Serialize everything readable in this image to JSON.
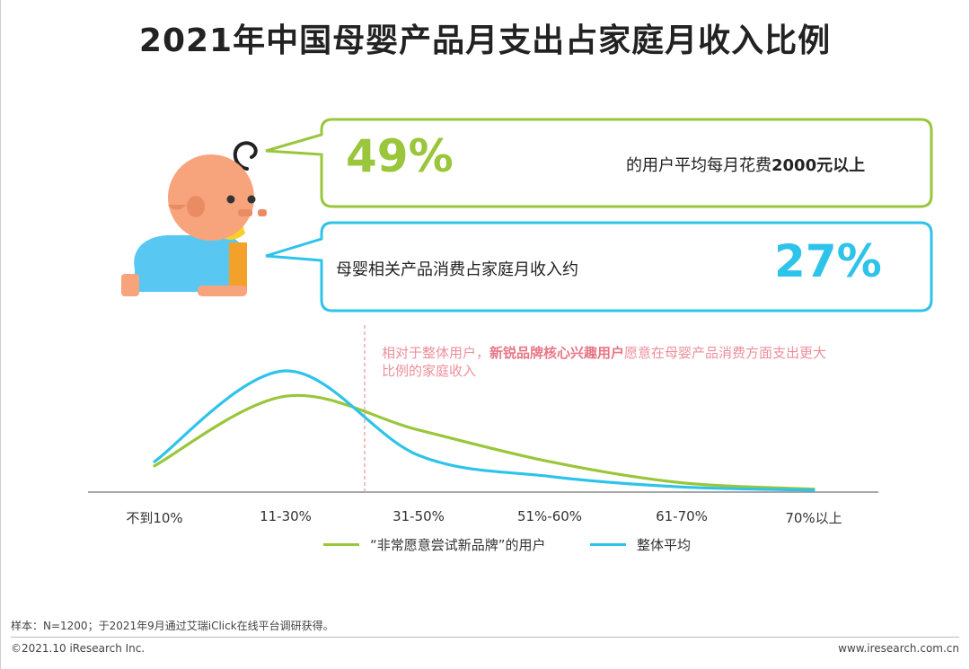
{
  "title": "2021年中国母婴产品月支出占家庭月收入比例",
  "callout_1": {
    "percent": "49%",
    "text_prefix": "的用户平均每月花费",
    "text_bold": "2000元以上",
    "color": "#9ac63b"
  },
  "callout_2": {
    "text": "母婴相关产品消费占家庭月收入约",
    "percent": "27%",
    "color": "#2ec3ea"
  },
  "annotation": {
    "prefix": "相对于整体用户，",
    "bold": "新锐品牌核心兴趣用户",
    "suffix": "愿意在母婴产品消费方面支出更大比例的家庭收入"
  },
  "chart_data": {
    "type": "line",
    "categories": [
      "不到10%",
      "11-30%",
      "31-50%",
      "51%-60%",
      "61-70%",
      "70%以上"
    ],
    "series": [
      {
        "name": "“非常愿意尝试新品牌”的用户",
        "color": "#9ac63b",
        "values": [
          12,
          45,
          29,
          14,
          4,
          1
        ]
      },
      {
        "name": "整体平均",
        "color": "#2ec3ea",
        "values": [
          14,
          57,
          17,
          7,
          2,
          0.5
        ]
      }
    ],
    "reference_line_color": "#ee8f9a",
    "grid": false,
    "legend_position": "bottom"
  },
  "footer": {
    "note": "样本：N=1200；于2021年9月通过艾瑞iClick在线平台调研获得。",
    "copyright": "©2021.10 iResearch Inc.",
    "website": "www.iresearch.com.cn"
  }
}
